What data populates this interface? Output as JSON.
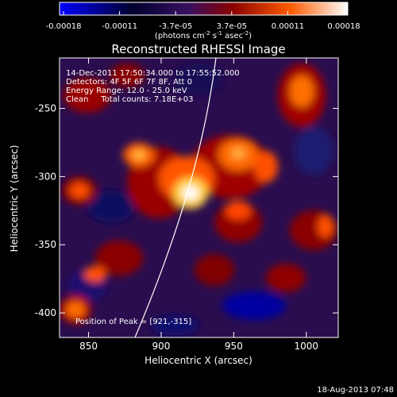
{
  "colorbar": {
    "ticks": [
      "-0.00018",
      "-0.00011",
      "-3.7e-05",
      "3.7e-05",
      "0.00011",
      "0.00018"
    ],
    "unit_parts": {
      "open": "(photons cm",
      "exp1": "-2",
      "s": " s",
      "exp2": "-1",
      "asec": " asec",
      "exp3": "-2",
      "close": ")"
    },
    "colors": [
      "#0000ff",
      "#000022",
      "#3a1060",
      "#8a0000",
      "#ff5a00",
      "#ffffff"
    ]
  },
  "plot": {
    "title": "Reconstructed RHESSI Image",
    "xlabel": "Heliocentric X (arcsec)",
    "ylabel": "Heliocentric Y (arcsec)",
    "x_ticks": [
      "850",
      "900",
      "950",
      "1000"
    ],
    "y_ticks": [
      "-250",
      "-300",
      "-350",
      "-400"
    ],
    "x_range": [
      830,
      1022
    ],
    "y_range": [
      -418,
      -213
    ]
  },
  "annotations": {
    "time": "14-Dec-2011 17:50:34.000 to 17:55:52.000",
    "detectors": "Detectors: 4F 5F 6F 7F 8F, Att 0",
    "energy": "Energy Range: 12.0 - 25.0 keV",
    "method": "Clean     Total counts: 7.18E+03",
    "peak": "Position of Peak = [921,-315]"
  },
  "footer": {
    "date": "18-Aug-2013 07:48"
  }
}
